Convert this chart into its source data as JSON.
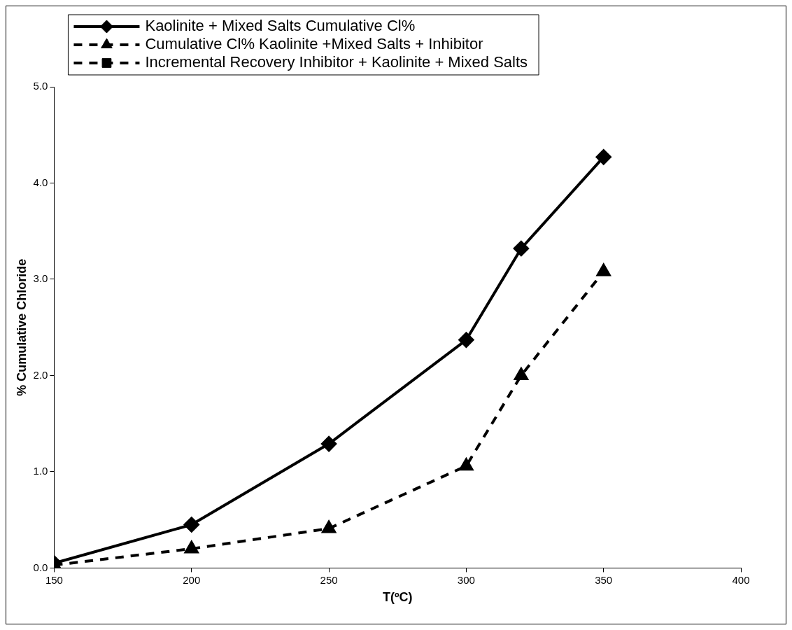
{
  "chart_data": {
    "type": "line",
    "xlabel": "T(ºC)",
    "ylabel": "% Cumulative Chloride",
    "x": [
      150,
      200,
      250,
      300,
      320,
      350
    ],
    "series": [
      {
        "name": "Kaolinite + Mixed Salts Cumulative Cl%",
        "color": "#000000",
        "marker": "diamond",
        "line_style": "solid",
        "values": [
          0.05,
          0.45,
          1.29,
          2.37,
          3.32,
          4.27
        ]
      },
      {
        "name": "Cumulative Cl% Kaolinite +Mixed Salts + Inhibitor",
        "color": "#000000",
        "marker": "triangle",
        "line_style": "dashed",
        "values": [
          0.03,
          0.2,
          0.41,
          1.06,
          2.0,
          3.08
        ]
      },
      {
        "name": "Incremental Recovery Inhibitor + Kaolinite + Mixed Salts",
        "color": "#000000",
        "marker": "square",
        "line_style": "dashed",
        "values": [
          null,
          null,
          null,
          null,
          null,
          null
        ]
      }
    ],
    "xlim": [
      150,
      400
    ],
    "xticks": [
      150,
      200,
      250,
      300,
      350,
      400
    ],
    "ylim": [
      0,
      5
    ],
    "yticks": [
      {
        "value": 0,
        "label": "0.0"
      },
      {
        "value": 1,
        "label": "1.0"
      },
      {
        "value": 2,
        "label": "2.0"
      },
      {
        "value": 3,
        "label": "3.0"
      },
      {
        "value": 4,
        "label": "4.0"
      },
      {
        "value": 5,
        "label": "5.0"
      }
    ],
    "grid": false,
    "legend": "top left"
  }
}
